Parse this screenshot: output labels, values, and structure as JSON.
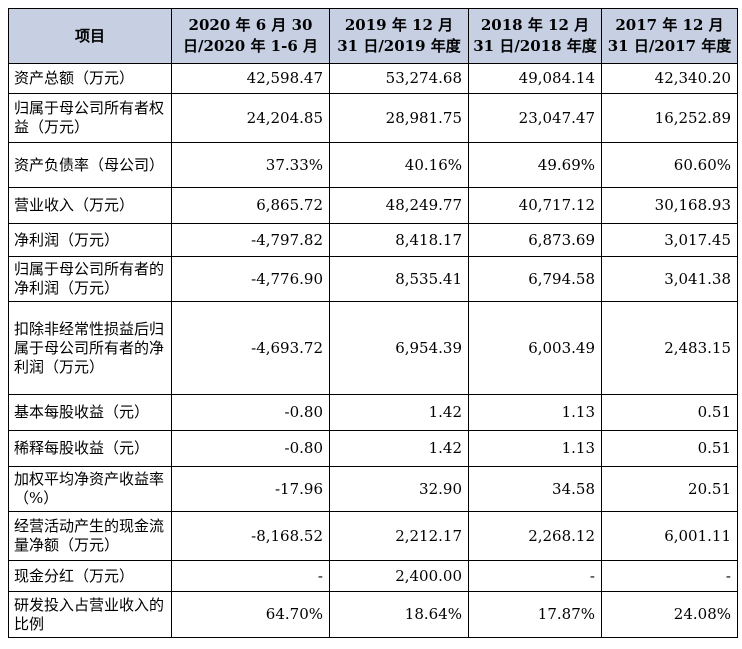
{
  "table": {
    "headers": [
      "项目",
      "2020 年 6 月 30 日/2020 年 1-6 月",
      "2019 年 12 月 31 日/2019 年度",
      "2018 年 12 月 31 日/2018 年度",
      "2017 年 12 月 31 日/2017 年度"
    ],
    "rows": [
      {
        "label": "资产总额（万元）",
        "values": [
          "42,598.47",
          "53,274.68",
          "49,084.14",
          "42,340.20"
        ]
      },
      {
        "label": "归属于母公司所有者权益（万元）",
        "values": [
          "24,204.85",
          "28,981.75",
          "23,047.47",
          "16,252.89"
        ]
      },
      {
        "label": "资产负债率（母公司）",
        "values": [
          "37.33%",
          "40.16%",
          "49.69%",
          "60.60%"
        ]
      },
      {
        "label": "营业收入（万元）",
        "values": [
          "6,865.72",
          "48,249.77",
          "40,717.12",
          "30,168.93"
        ]
      },
      {
        "label": "净利润（万元）",
        "values": [
          "-4,797.82",
          "8,418.17",
          "6,873.69",
          "3,017.45"
        ]
      },
      {
        "label": "归属于母公司所有者的净利润（万元）",
        "values": [
          "-4,776.90",
          "8,535.41",
          "6,794.58",
          "3,041.38"
        ]
      },
      {
        "label": "扣除非经常性损益后归属于母公司所有者的净利润（万元）",
        "values": [
          "-4,693.72",
          "6,954.39",
          "6,003.49",
          "2,483.15"
        ]
      },
      {
        "label": "基本每股收益（元）",
        "values": [
          "-0.80",
          "1.42",
          "1.13",
          "0.51"
        ]
      },
      {
        "label": "稀释每股收益（元）",
        "values": [
          "-0.80",
          "1.42",
          "1.13",
          "0.51"
        ]
      },
      {
        "label": "加权平均净资产收益率（%）",
        "values": [
          "-17.96",
          "32.90",
          "34.58",
          "20.51"
        ]
      },
      {
        "label": "经营活动产生的现金流量净额（万元）",
        "values": [
          "-8,168.52",
          "2,212.17",
          "2,268.12",
          "6,001.11"
        ]
      },
      {
        "label": "现金分红（万元）",
        "values": [
          "-",
          "2,400.00",
          "-",
          "-"
        ]
      },
      {
        "label": "研发投入占营业收入的比例",
        "values": [
          "64.70%",
          "18.64%",
          "17.87%",
          "24.08%"
        ]
      }
    ]
  }
}
